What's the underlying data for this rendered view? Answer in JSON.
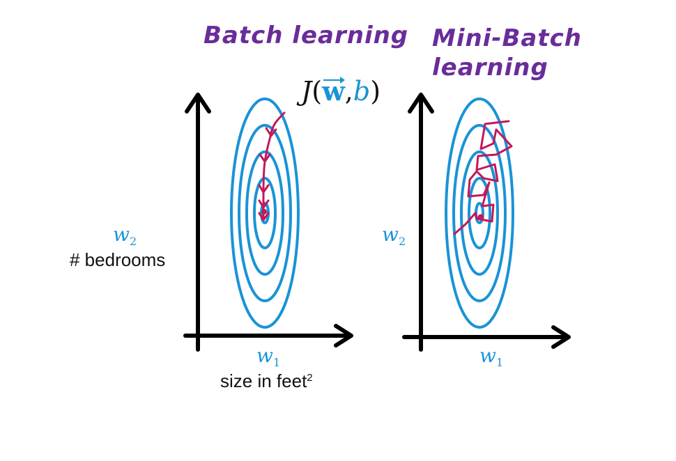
{
  "titles": {
    "left": "Batch learning",
    "right_line1": "Mini-Batch",
    "right_line2": "learning"
  },
  "cost_function": {
    "J": "J",
    "open": "(",
    "w": "w",
    "comma": ",",
    "b": "b",
    "close": ")"
  },
  "axes": {
    "left_y_var": "w",
    "left_y_sub": "2",
    "left_y_desc": "# bedrooms",
    "left_x_var": "w",
    "left_x_sub": "1",
    "left_x_desc": "size in feet",
    "left_x_desc_sup": "2",
    "right_y_var": "w",
    "right_y_sub": "2",
    "right_x_var": "w",
    "right_x_sub": "1"
  },
  "colors": {
    "title": "#6a2c9a",
    "contour": "#1a93d6",
    "path": "#c2185b",
    "axis": "#000000"
  }
}
